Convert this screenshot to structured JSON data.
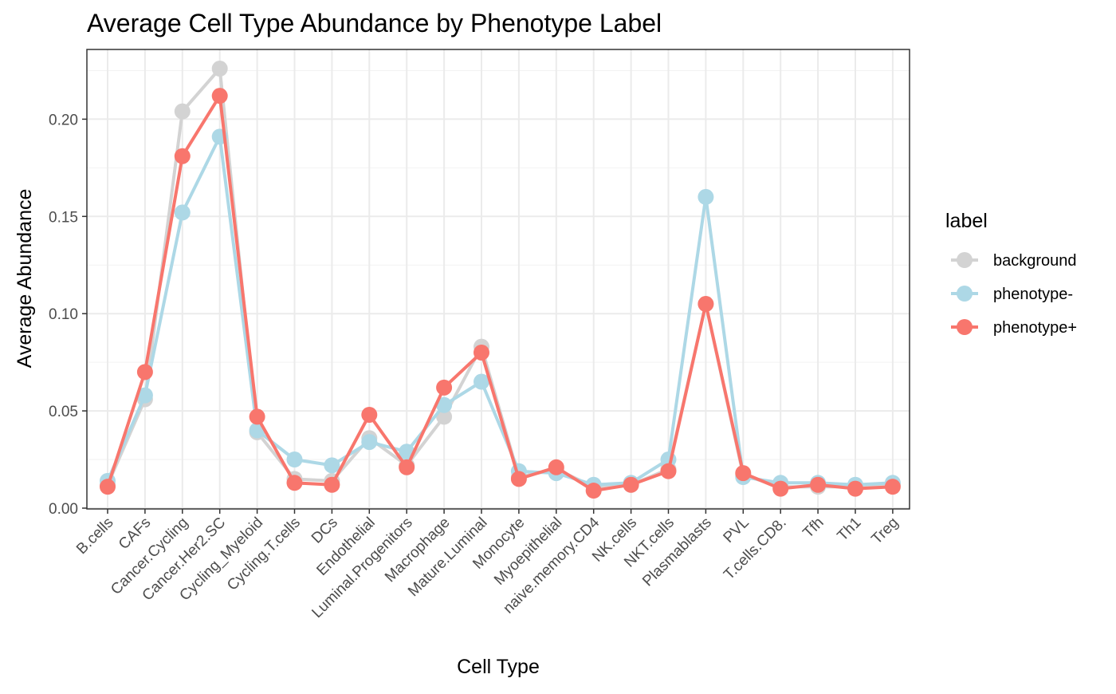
{
  "chart_data": {
    "type": "line",
    "title": "Average Cell Type Abundance by Phenotype Label",
    "xlabel": "Cell Type",
    "ylabel": "Average Abundance",
    "ylim": [
      0,
      0.225
    ],
    "yticks": [
      "0.00",
      "0.05",
      "0.10",
      "0.15",
      "0.20"
    ],
    "grid": true,
    "legend_placement": "right",
    "legend_title": "label",
    "categories": [
      "B.cells",
      "CAFs",
      "Cancer.Cycling",
      "Cancer.Her2.SC",
      "Cycling_Myeloid",
      "Cycling.T.cells",
      "DCs",
      "Endothelial",
      "Luminal.Progenitors",
      "Macrophage",
      "Mature.Luminal",
      "Monocyte",
      "Myoepithelial",
      "naive.memory.CD4",
      "NK.cells",
      "NKT.cells",
      "Plasmablasts",
      "PVL",
      "T.cells.CD8.",
      "Tfh",
      "Th1",
      "Treg"
    ],
    "series": [
      {
        "name": "background",
        "color": "#d3d3d3",
        "values": [
          0.012,
          0.056,
          0.204,
          0.226,
          0.039,
          0.015,
          0.014,
          0.036,
          0.022,
          0.047,
          0.083,
          0.016,
          0.02,
          0.011,
          0.012,
          0.02,
          0.105,
          0.017,
          0.011,
          0.011,
          0.011,
          0.012
        ]
      },
      {
        "name": "phenotype-",
        "color": "#add8e6",
        "values": [
          0.014,
          0.058,
          0.152,
          0.191,
          0.04,
          0.025,
          0.022,
          0.034,
          0.029,
          0.053,
          0.065,
          0.019,
          0.018,
          0.012,
          0.013,
          0.025,
          0.16,
          0.016,
          0.013,
          0.013,
          0.012,
          0.013
        ]
      },
      {
        "name": "phenotype+",
        "color": "#f8766d",
        "values": [
          0.011,
          0.07,
          0.181,
          0.212,
          0.047,
          0.013,
          0.012,
          0.048,
          0.021,
          0.062,
          0.08,
          0.015,
          0.021,
          0.009,
          0.012,
          0.019,
          0.105,
          0.018,
          0.01,
          0.012,
          0.01,
          0.011
        ]
      }
    ]
  }
}
